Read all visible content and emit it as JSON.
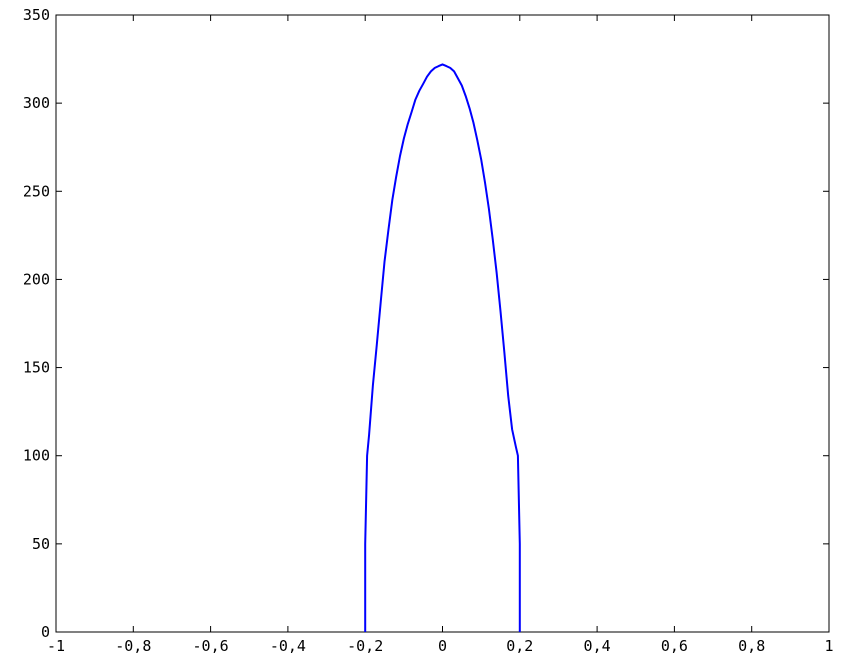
{
  "chart_data": {
    "type": "line",
    "title": "",
    "xlabel": "",
    "ylabel": "",
    "xlim": [
      -1,
      1
    ],
    "ylim": [
      0,
      350
    ],
    "x_ticks": [
      -1,
      -0.8,
      -0.6,
      -0.4,
      -0.2,
      0,
      0.2,
      0.4,
      0.6,
      0.8,
      1
    ],
    "x_tick_labels": [
      "-1",
      "-0,8",
      "-0,6",
      "-0,4",
      "-0,2",
      "0",
      "0,2",
      "0,4",
      "0,6",
      "0,8",
      "1"
    ],
    "y_ticks": [
      0,
      50,
      100,
      150,
      200,
      250,
      300,
      350
    ],
    "y_tick_labels": [
      "0",
      "50",
      "100",
      "150",
      "200",
      "250",
      "300",
      "350"
    ],
    "grid": false,
    "legend": "none",
    "series": [
      {
        "color": "#0000ff",
        "x": [
          -0.2,
          -0.2,
          -0.195,
          -0.19,
          -0.18,
          -0.17,
          -0.16,
          -0.15,
          -0.14,
          -0.13,
          -0.12,
          -0.11,
          -0.1,
          -0.09,
          -0.08,
          -0.07,
          -0.06,
          -0.05,
          -0.04,
          -0.03,
          -0.02,
          -0.01,
          0,
          0.01,
          0.02,
          0.03,
          0.04,
          0.05,
          0.06,
          0.07,
          0.08,
          0.09,
          0.1,
          0.11,
          0.12,
          0.13,
          0.14,
          0.15,
          0.16,
          0.17,
          0.18,
          0.19,
          0.195,
          0.2,
          0.2
        ],
        "y": [
          0,
          50,
          100,
          112,
          140,
          163,
          187,
          210,
          228,
          245,
          258,
          270,
          280,
          288,
          295,
          302,
          307,
          311,
          315,
          318,
          320,
          321,
          322,
          321,
          320,
          318,
          314,
          310,
          304,
          297,
          289,
          279,
          268,
          255,
          240,
          223,
          204,
          182,
          159,
          134,
          115,
          105,
          100,
          50,
          0
        ]
      }
    ]
  }
}
